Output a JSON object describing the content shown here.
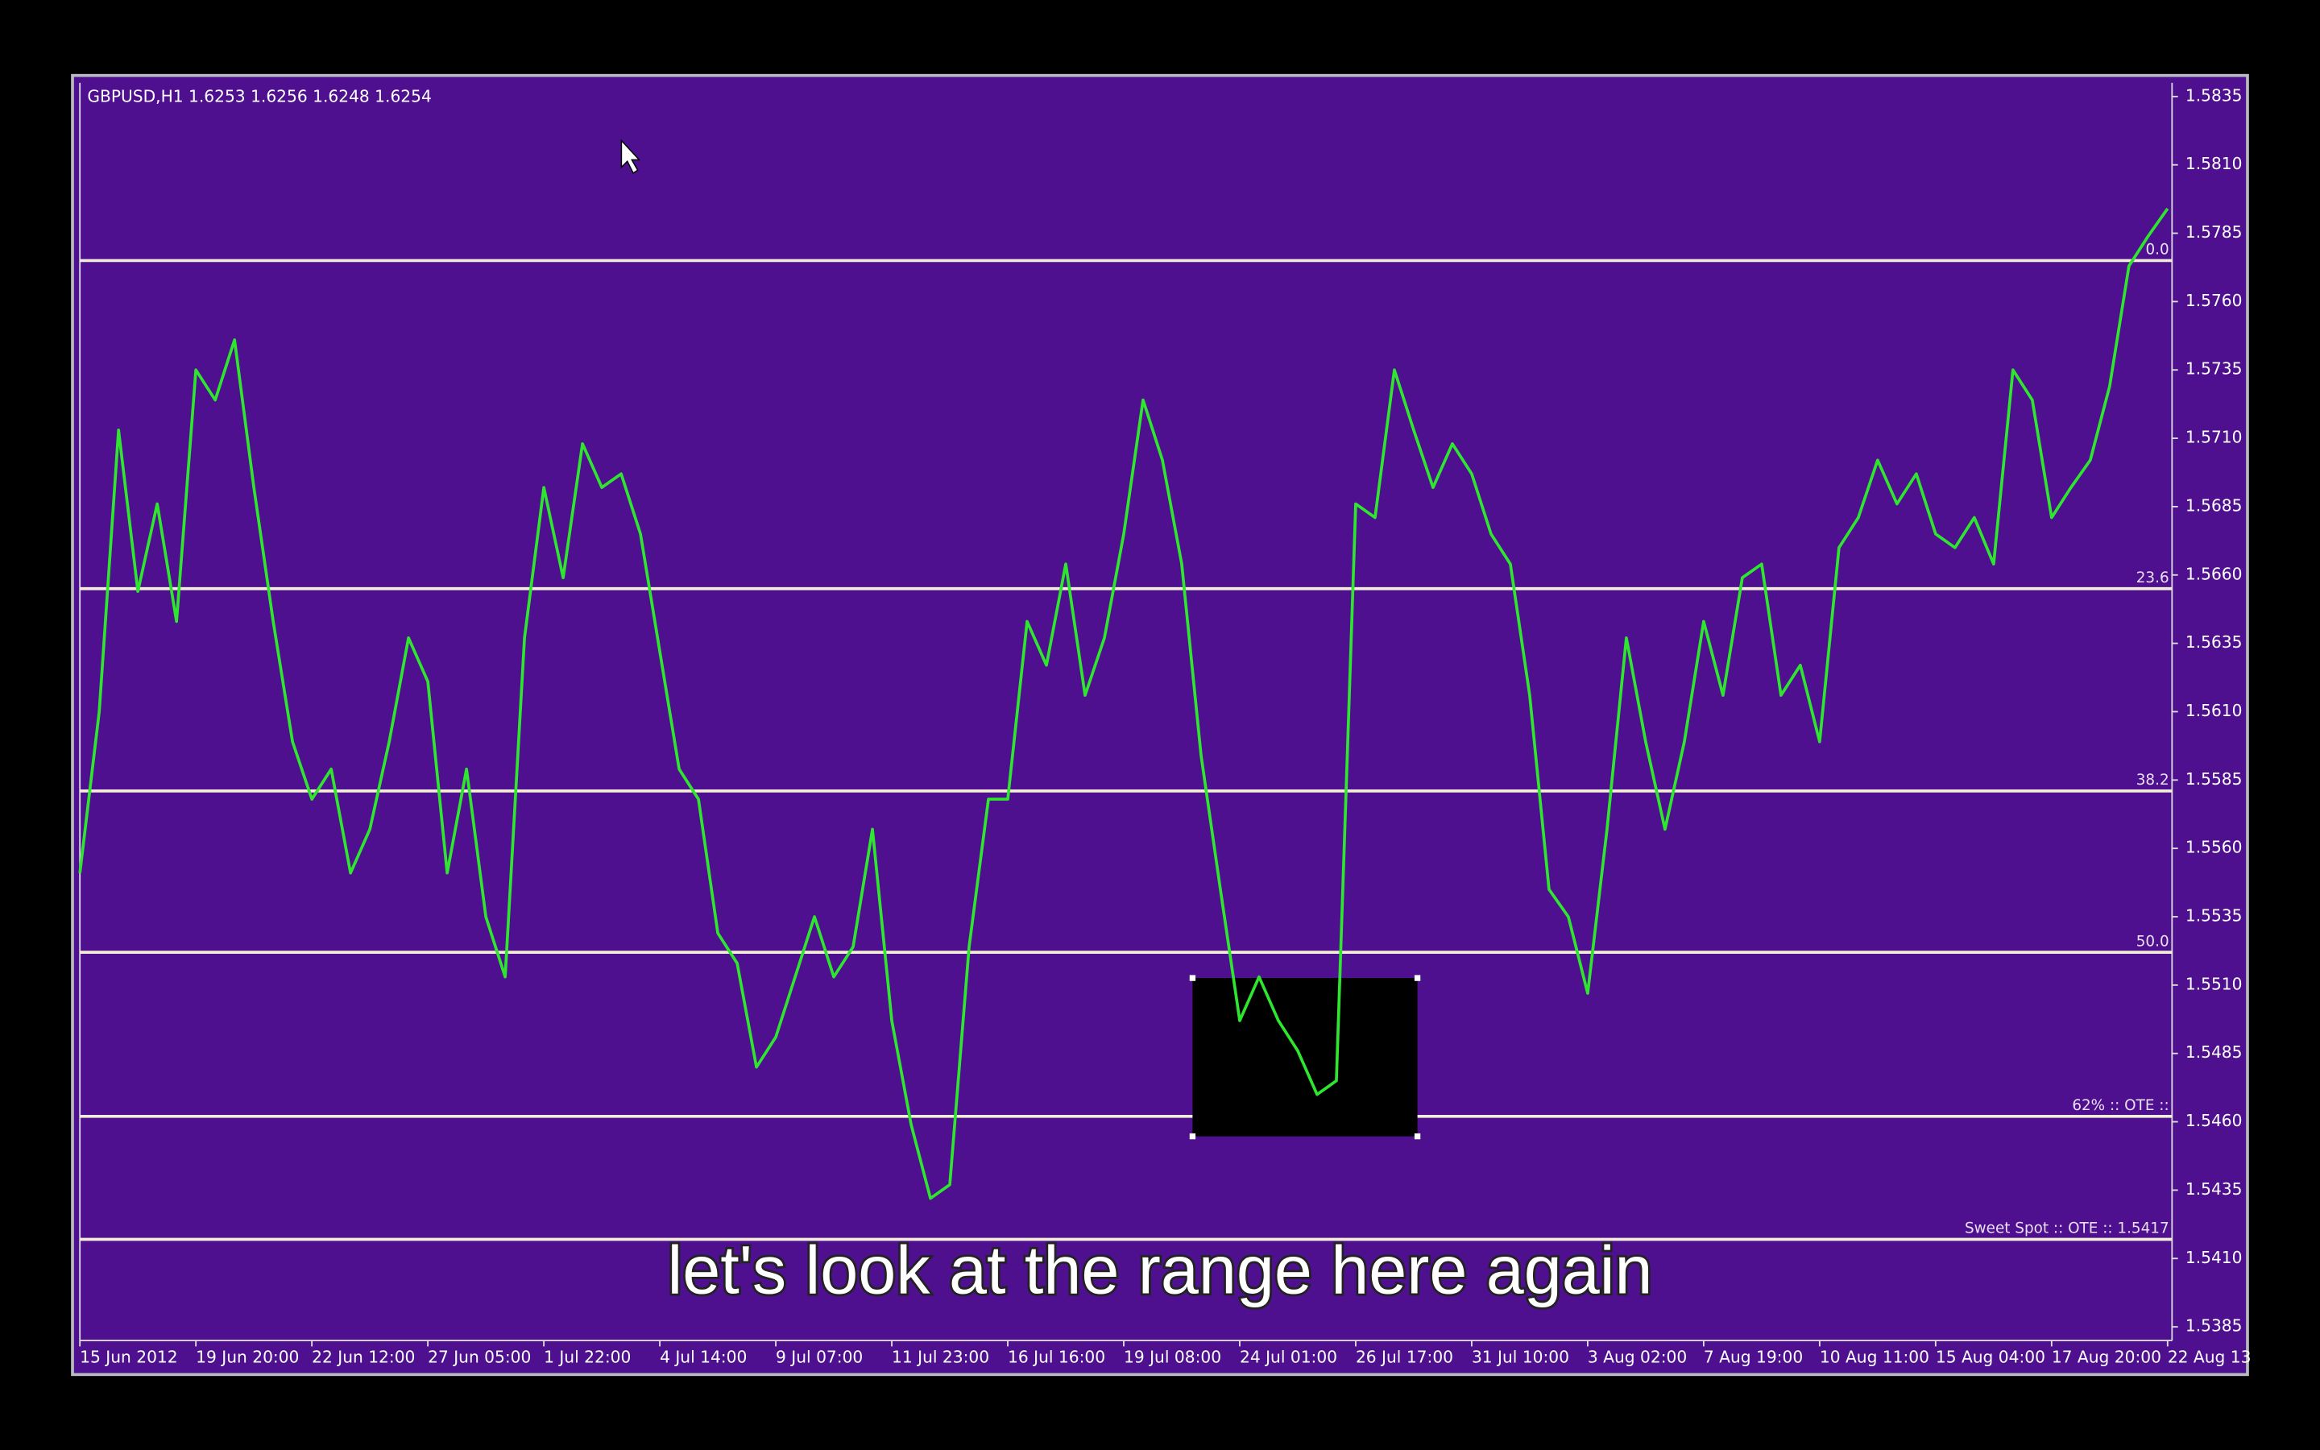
{
  "header": {
    "symbol_info": "GBPUSD,H1  1.6253 1.6256 1.6248 1.6254"
  },
  "chart_data": {
    "type": "line",
    "categories": [
      "15 Jun 2012",
      null,
      null,
      null,
      null,
      null,
      "19 Jun 20:00",
      null,
      null,
      null,
      null,
      null,
      "22 Jun 12:00",
      null,
      null,
      null,
      null,
      null,
      "27 Jun 05:00",
      null,
      null,
      null,
      null,
      null,
      "1 Jul 22:00",
      null,
      null,
      null,
      null,
      null,
      "4 Jul 14:00",
      null,
      null,
      null,
      null,
      null,
      "9 Jul 07:00",
      null,
      null,
      null,
      null,
      null,
      "11 Jul 23:00",
      null,
      null,
      null,
      null,
      null,
      "16 Jul 16:00",
      null,
      null,
      null,
      null,
      null,
      "19 Jul 08:00",
      null,
      null,
      null,
      null,
      null,
      "24 Jul 01:00",
      null,
      null,
      null,
      null,
      null,
      "26 Jul 17:00",
      null,
      null,
      null,
      null,
      null,
      "31 Jul 10:00",
      null,
      null,
      null,
      null,
      null,
      "3 Aug 02:00",
      null,
      null,
      null,
      null,
      null,
      "7 Aug 19:00",
      null,
      null,
      null,
      null,
      null,
      "10 Aug 11:00",
      null,
      null,
      null,
      null,
      null,
      "15 Aug 04:00",
      null,
      null,
      null,
      null,
      null,
      "17 Aug 20:00",
      null,
      null,
      null,
      null,
      null,
      "22 Aug 13"
    ],
    "values": [
      1.5551,
      1.561,
      1.5713,
      1.5654,
      1.5686,
      1.5643,
      1.5735,
      1.5724,
      1.5746,
      1.5692,
      1.5643,
      1.5599,
      1.5578,
      1.5589,
      1.5551,
      1.5567,
      1.5599,
      1.5637,
      1.5621,
      1.5551,
      1.5589,
      1.5535,
      1.5513,
      1.5637,
      1.5692,
      1.5659,
      1.5708,
      1.5692,
      1.5697,
      1.5675,
      1.5632,
      1.5589,
      1.5578,
      1.5529,
      1.5518,
      1.548,
      1.5491,
      1.5513,
      1.5535,
      1.5513,
      1.5524,
      1.5567,
      1.5497,
      1.5459,
      1.5432,
      1.5437,
      1.5524,
      1.5578,
      1.5578,
      1.5643,
      1.5627,
      1.5664,
      1.5616,
      1.5637,
      1.5675,
      1.5724,
      1.5702,
      1.5664,
      1.5594,
      1.5545,
      1.5497,
      1.5513,
      1.5497,
      1.5486,
      1.547,
      1.5475,
      1.5686,
      1.5681,
      1.5735,
      1.5713,
      1.5692,
      1.5708,
      1.5697,
      1.5675,
      1.5664,
      1.5616,
      1.5545,
      1.5535,
      1.5507,
      1.5567,
      1.5637,
      1.5599,
      1.5567,
      1.5599,
      1.5643,
      1.5616,
      1.5659,
      1.5664,
      1.5616,
      1.5627,
      1.5599,
      1.567,
      1.5681,
      1.5702,
      1.5686,
      1.5697,
      1.5675,
      1.567,
      1.5681,
      1.5664,
      1.5735,
      1.5724,
      1.5681,
      1.5692,
      1.5702,
      1.5729,
      1.5773,
      1.5784,
      1.5794
    ],
    "color": "#2ee62e",
    "background": "#4e108f",
    "ylim": [
      1.538,
      1.584
    ],
    "yticks": [
      1.5835,
      {
        "value": 1.581,
        "label": "1.5810"
      },
      1.5785,
      {
        "value": 1.576,
        "label": "1.5760"
      },
      1.5735,
      {
        "value": 1.571,
        "label": "1.5710"
      },
      1.5685,
      {
        "value": 1.566,
        "label": "1.5660"
      },
      1.5635,
      {
        "value": 1.561,
        "label": "1.5610"
      },
      1.5585,
      {
        "value": 1.556,
        "label": "1.5560"
      },
      1.5535,
      {
        "value": 1.551,
        "label": "1.5510"
      },
      1.5485,
      {
        "value": 1.546,
        "label": "1.5460"
      },
      1.5435,
      {
        "value": 1.541,
        "label": "1.5410"
      },
      1.5385
    ],
    "levels": [
      {
        "label": "0.0",
        "value": 1.5775
      },
      {
        "label": "23.6",
        "value": 1.5655
      },
      {
        "label": "38.2",
        "value": 1.5581
      },
      {
        "label": "50.0",
        "value": 1.5522
      },
      {
        "label": "62% :: OTE ::",
        "value": 1.5462
      },
      {
        "label": "Sweet Spot :: OTE ::  1.5417",
        "value": 1.5417
      }
    ],
    "grid": false
  },
  "subtitle": "let's look at the range here again"
}
